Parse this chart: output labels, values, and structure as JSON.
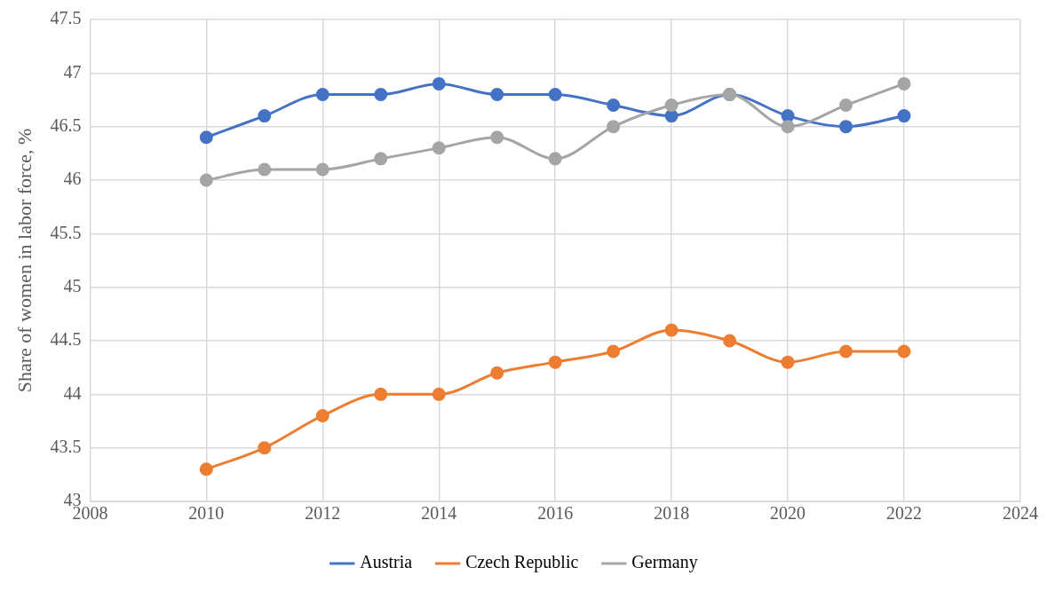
{
  "chart_data": {
    "type": "line",
    "ylabel": "Share of women in labor force, %",
    "x": [
      2010,
      2011,
      2012,
      2013,
      2014,
      2015,
      2016,
      2017,
      2018,
      2019,
      2020,
      2021,
      2022
    ],
    "series": [
      {
        "name": "Austria",
        "color": "#4472c4",
        "values": [
          46.4,
          46.6,
          46.8,
          46.8,
          46.9,
          46.8,
          46.8,
          46.7,
          46.6,
          46.8,
          46.6,
          46.5,
          46.6
        ]
      },
      {
        "name": "Czech Republic",
        "color": "#ed7d31",
        "values": [
          43.3,
          43.5,
          43.8,
          44.0,
          44.0,
          44.2,
          44.3,
          44.4,
          44.6,
          44.5,
          44.3,
          44.4,
          44.4
        ]
      },
      {
        "name": "Germany",
        "color": "#a5a5a5",
        "values": [
          46.0,
          46.1,
          46.1,
          46.2,
          46.3,
          46.4,
          46.2,
          46.5,
          46.7,
          46.8,
          46.5,
          46.7,
          46.9
        ]
      }
    ],
    "xlim": [
      2008,
      2024
    ],
    "xticks": [
      2008,
      2010,
      2012,
      2014,
      2016,
      2018,
      2020,
      2022,
      2024
    ],
    "ylim": [
      43,
      47.5
    ],
    "yticks": [
      43,
      43.5,
      44,
      44.5,
      45,
      45.5,
      46,
      46.5,
      47,
      47.5
    ],
    "grid": true,
    "legend": "bottom",
    "marker": "circle",
    "line_style": "solid"
  }
}
